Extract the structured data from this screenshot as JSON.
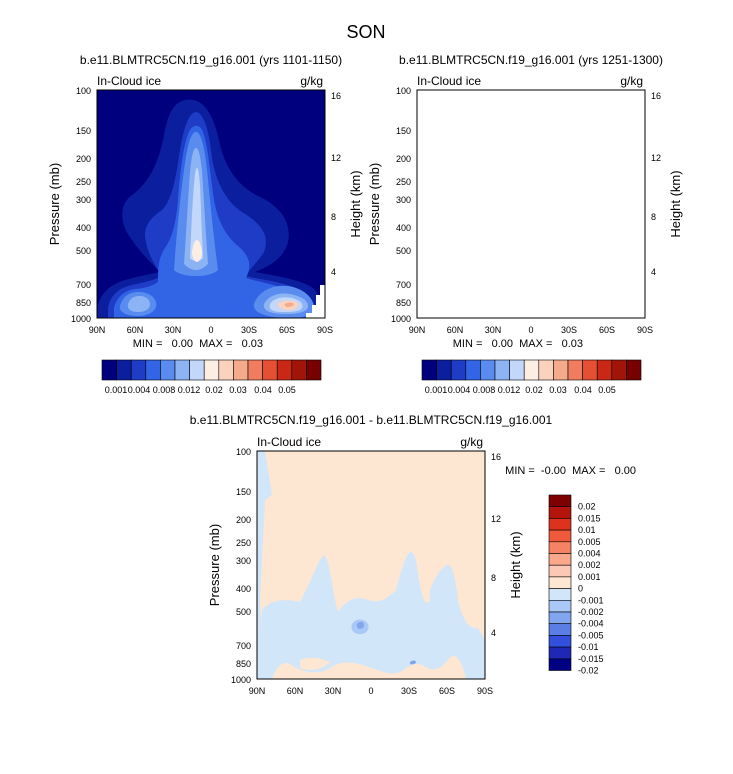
{
  "page_title": "SON",
  "chart_data": [
    {
      "type": "heatmap",
      "title": "b.e11.BLMTRC5CN.f19_g16.001 (yrs 1101-1150)",
      "field_label": "In-Cloud ice",
      "units_label": "g/kg",
      "ylabel": "Pressure (mb)",
      "y2label": "Height (km)",
      "x_ticks": [
        "90N",
        "60N",
        "30N",
        "0",
        "30S",
        "60S",
        "90S"
      ],
      "y_ticks": [
        "100",
        "150",
        "200",
        "250",
        "300",
        "400",
        "500",
        "700",
        "850",
        "1000"
      ],
      "y2_ticks": [
        "16",
        "12",
        "8",
        "4"
      ],
      "stats_text": "MIN =   0.00  MAX =   0.03",
      "min": 0.0,
      "max": 0.03,
      "colorbar": {
        "labels": [
          "0.001",
          "0.004",
          "0.008",
          "0.012",
          "0.02",
          "0.03",
          "0.04",
          "0.05"
        ],
        "colors": [
          "#00007f",
          "#0a1e9e",
          "#1e3cc6",
          "#3264e6",
          "#5a8cf0",
          "#8cb4f5",
          "#c3d7fa",
          "#fdeee4",
          "#fad2bd",
          "#f5aa8c",
          "#f07d5f",
          "#e65032",
          "#c82814",
          "#a0140a",
          "#780000"
        ]
      }
    },
    {
      "type": "heatmap",
      "title": "b.e11.BLMTRC5CN.f19_g16.001 (yrs 1251-1300)",
      "field_label": "In-Cloud ice",
      "units_label": "g/kg",
      "ylabel": "Pressure (mb)",
      "y2label": "Height (km)",
      "x_ticks": [
        "90N",
        "60N",
        "30N",
        "0",
        "30S",
        "60S",
        "90S"
      ],
      "y_ticks": [
        "100",
        "150",
        "200",
        "250",
        "300",
        "400",
        "500",
        "700",
        "850",
        "1000"
      ],
      "y2_ticks": [
        "16",
        "12",
        "8",
        "4"
      ],
      "stats_text": "MIN =   0.00  MAX =   0.03",
      "min": 0.0,
      "max": 0.03,
      "colorbar": {
        "labels": [
          "0.001",
          "0.004",
          "0.008",
          "0.012",
          "0.02",
          "0.03",
          "0.04",
          "0.05"
        ],
        "colors": [
          "#00007f",
          "#0a1e9e",
          "#1e3cc6",
          "#3264e6",
          "#5a8cf0",
          "#8cb4f5",
          "#c3d7fa",
          "#fdeee4",
          "#fad2bd",
          "#f5aa8c",
          "#f07d5f",
          "#e65032",
          "#c82814",
          "#a0140a",
          "#780000"
        ]
      }
    },
    {
      "type": "heatmap",
      "title": "b.e11.BLMTRC5CN.f19_g16.001 - b.e11.BLMTRC5CN.f19_g16.001",
      "field_label": "In-Cloud ice",
      "units_label": "g/kg",
      "ylabel": "Pressure (mb)",
      "y2label": "Height (km)",
      "x_ticks": [
        "90N",
        "60N",
        "30N",
        "0",
        "30S",
        "60S",
        "90S"
      ],
      "y_ticks": [
        "100",
        "150",
        "200",
        "250",
        "300",
        "400",
        "500",
        "700",
        "850",
        "1000"
      ],
      "y2_ticks": [
        "16",
        "12",
        "8",
        "4"
      ],
      "stats_text": "MIN =  -0.00  MAX =   0.00",
      "min": -0.0,
      "max": 0.0,
      "colorbar": {
        "labels": [
          "0.02",
          "0.015",
          "0.01",
          "0.005",
          "0.004",
          "0.002",
          "0.001",
          "0",
          "-0.001",
          "-0.002",
          "-0.004",
          "-0.005",
          "-0.01",
          "-0.015",
          "-0.02"
        ],
        "colors": [
          "#7f0000",
          "#b4140a",
          "#dc321e",
          "#f05a3c",
          "#f58264",
          "#faa78c",
          "#fac8b4",
          "#fde6d2",
          "#d2e6fa",
          "#aac8f5",
          "#82a5f0",
          "#5a7de6",
          "#3250dc",
          "#1e28b4",
          "#000082"
        ]
      }
    }
  ]
}
